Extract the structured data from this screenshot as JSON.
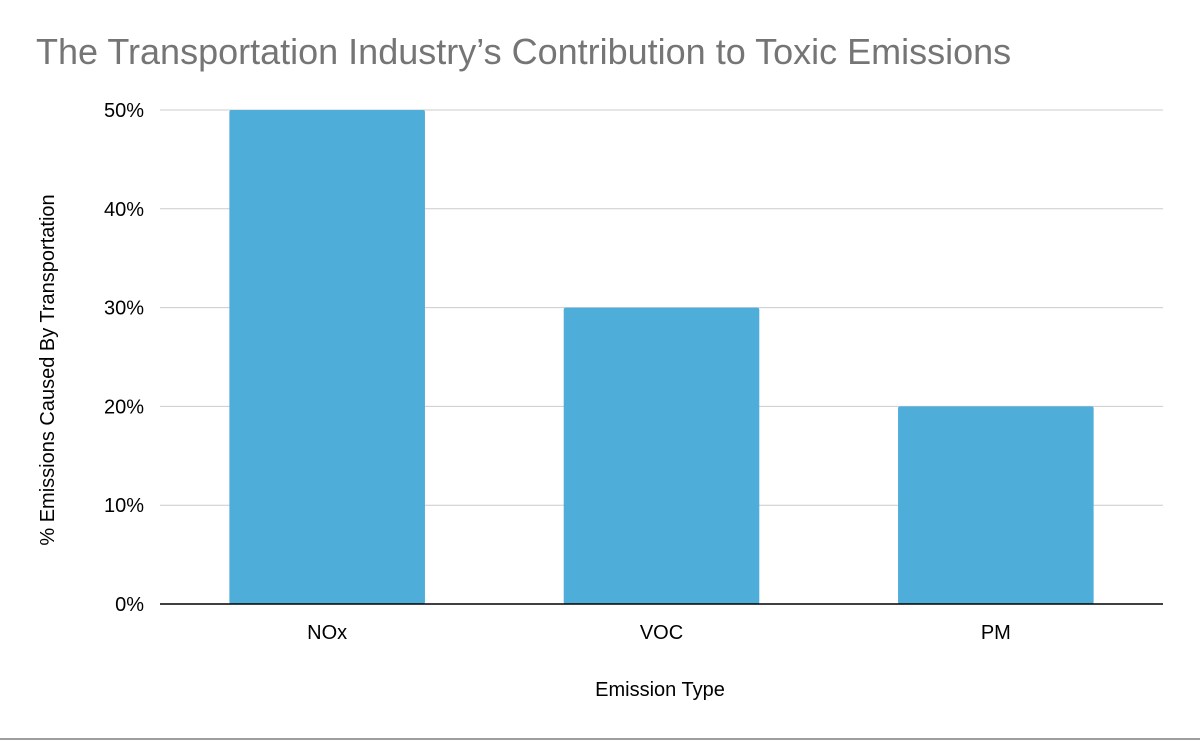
{
  "chart_data": {
    "type": "bar",
    "title": "The Transportation Industry’s Contribution to Toxic Emissions",
    "xlabel": "Emission Type",
    "ylabel": "% Emissions Caused By Transportation",
    "categories": [
      "NOx",
      "VOC",
      "PM"
    ],
    "values": [
      50,
      30,
      20
    ],
    "ylim": [
      0,
      50
    ],
    "yticks": [
      "0%",
      "10%",
      "20%",
      "30%",
      "40%",
      "50%"
    ],
    "grid": true,
    "legend": "none",
    "colors": {
      "bar": "#4fadda",
      "gridline": "#cccccc",
      "axis": "#000000",
      "title": "#757575"
    }
  }
}
